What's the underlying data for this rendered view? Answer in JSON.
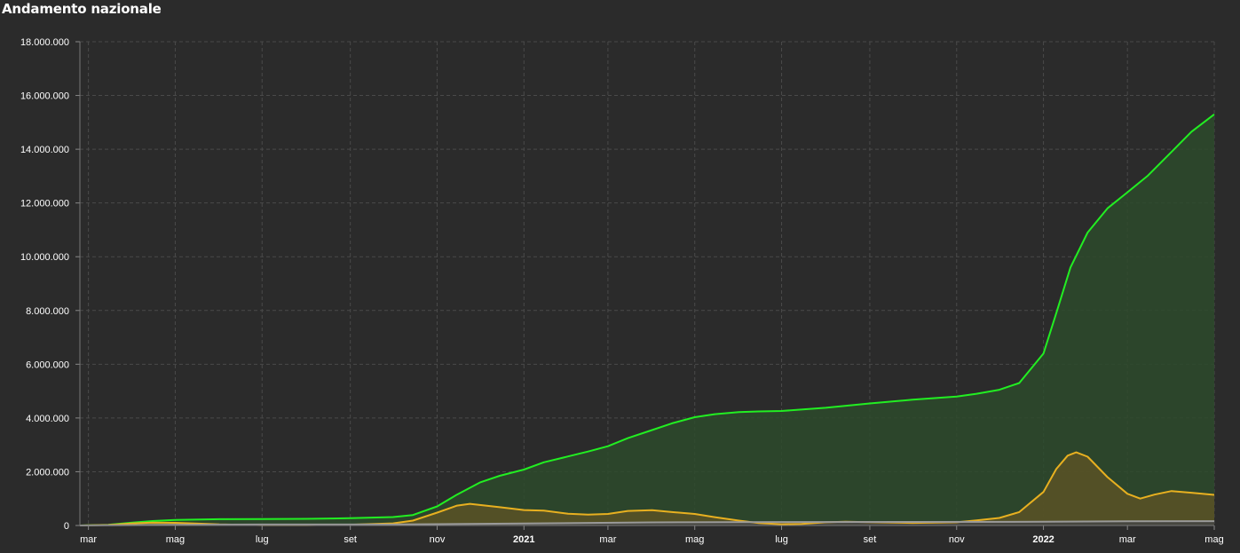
{
  "title": "Andamento nazionale",
  "chart_data": {
    "type": "area",
    "title": "Andamento nazionale",
    "xlabel": "",
    "ylabel": "",
    "ylim": [
      0,
      18000000
    ],
    "xlim": [
      "2020-02-24",
      "2022-05-01"
    ],
    "grid": true,
    "legend": "none",
    "y_ticks": [
      {
        "value": 0,
        "label": "0"
      },
      {
        "value": 2000000,
        "label": "2.000.000"
      },
      {
        "value": 4000000,
        "label": "4.000.000"
      },
      {
        "value": 6000000,
        "label": "6.000.000"
      },
      {
        "value": 8000000,
        "label": "8.000.000"
      },
      {
        "value": 10000000,
        "label": "10.000.000"
      },
      {
        "value": 12000000,
        "label": "12.000.000"
      },
      {
        "value": 14000000,
        "label": "14.000.000"
      },
      {
        "value": 16000000,
        "label": "16.000.000"
      },
      {
        "value": 18000000,
        "label": "18.000.000"
      }
    ],
    "x_ticks": [
      {
        "date": "2020-03-01",
        "label": "mar",
        "bold": false
      },
      {
        "date": "2020-05-01",
        "label": "mag",
        "bold": false
      },
      {
        "date": "2020-07-01",
        "label": "lug",
        "bold": false
      },
      {
        "date": "2020-09-01",
        "label": "set",
        "bold": false
      },
      {
        "date": "2020-11-01",
        "label": "nov",
        "bold": false
      },
      {
        "date": "2021-01-01",
        "label": "2021",
        "bold": true
      },
      {
        "date": "2021-03-01",
        "label": "mar",
        "bold": false
      },
      {
        "date": "2021-05-01",
        "label": "mag",
        "bold": false
      },
      {
        "date": "2021-07-01",
        "label": "lug",
        "bold": false
      },
      {
        "date": "2021-09-01",
        "label": "set",
        "bold": false
      },
      {
        "date": "2021-11-01",
        "label": "nov",
        "bold": false
      },
      {
        "date": "2022-01-01",
        "label": "2022",
        "bold": true
      },
      {
        "date": "2022-03-01",
        "label": "mar",
        "bold": false
      },
      {
        "date": "2022-05-01",
        "label": "mag",
        "bold": false
      }
    ],
    "series": [
      {
        "color": "#22ee22",
        "fill": "#2d4a2b",
        "points": [
          [
            "2020-02-24",
            0
          ],
          [
            "2020-03-15",
            25000
          ],
          [
            "2020-04-01",
            110000
          ],
          [
            "2020-04-15",
            165000
          ],
          [
            "2020-05-01",
            208000
          ],
          [
            "2020-06-01",
            233000
          ],
          [
            "2020-07-01",
            241000
          ],
          [
            "2020-08-01",
            248000
          ],
          [
            "2020-09-01",
            270000
          ],
          [
            "2020-10-01",
            315000
          ],
          [
            "2020-10-15",
            390000
          ],
          [
            "2020-11-01",
            710000
          ],
          [
            "2020-11-15",
            1150000
          ],
          [
            "2020-12-01",
            1600000
          ],
          [
            "2020-12-15",
            1850000
          ],
          [
            "2021-01-01",
            2080000
          ],
          [
            "2021-01-15",
            2350000
          ],
          [
            "2021-02-01",
            2570000
          ],
          [
            "2021-02-15",
            2750000
          ],
          [
            "2021-03-01",
            2950000
          ],
          [
            "2021-03-15",
            3250000
          ],
          [
            "2021-04-01",
            3550000
          ],
          [
            "2021-04-15",
            3800000
          ],
          [
            "2021-05-01",
            4030000
          ],
          [
            "2021-05-15",
            4140000
          ],
          [
            "2021-06-01",
            4220000
          ],
          [
            "2021-06-15",
            4245000
          ],
          [
            "2021-07-01",
            4260000
          ],
          [
            "2021-08-01",
            4380000
          ],
          [
            "2021-09-01",
            4540000
          ],
          [
            "2021-10-01",
            4680000
          ],
          [
            "2021-11-01",
            4800000
          ],
          [
            "2021-11-15",
            4900000
          ],
          [
            "2021-12-01",
            5050000
          ],
          [
            "2021-12-15",
            5300000
          ],
          [
            "2022-01-01",
            6400000
          ],
          [
            "2022-01-10",
            7900000
          ],
          [
            "2022-01-20",
            9600000
          ],
          [
            "2022-02-01",
            10900000
          ],
          [
            "2022-02-15",
            11800000
          ],
          [
            "2022-03-01",
            12400000
          ],
          [
            "2022-03-15",
            13000000
          ],
          [
            "2022-04-01",
            13900000
          ],
          [
            "2022-04-15",
            14650000
          ],
          [
            "2022-05-01",
            15300000
          ]
        ]
      },
      {
        "color": "#e8b020",
        "fill": "#5a5226",
        "points": [
          [
            "2020-02-24",
            0
          ],
          [
            "2020-03-15",
            20000
          ],
          [
            "2020-04-01",
            80000
          ],
          [
            "2020-04-15",
            105000
          ],
          [
            "2020-05-01",
            100000
          ],
          [
            "2020-05-15",
            75000
          ],
          [
            "2020-06-01",
            40000
          ],
          [
            "2020-07-01",
            14000
          ],
          [
            "2020-08-01",
            13000
          ],
          [
            "2020-09-01",
            30000
          ],
          [
            "2020-10-01",
            80000
          ],
          [
            "2020-10-15",
            180000
          ],
          [
            "2020-11-01",
            480000
          ],
          [
            "2020-11-15",
            740000
          ],
          [
            "2020-11-24",
            805000
          ],
          [
            "2020-12-15",
            680000
          ],
          [
            "2021-01-01",
            575000
          ],
          [
            "2021-01-15",
            550000
          ],
          [
            "2021-02-01",
            440000
          ],
          [
            "2021-02-15",
            405000
          ],
          [
            "2021-03-01",
            430000
          ],
          [
            "2021-03-15",
            540000
          ],
          [
            "2021-04-01",
            570000
          ],
          [
            "2021-04-15",
            500000
          ],
          [
            "2021-05-01",
            430000
          ],
          [
            "2021-05-15",
            310000
          ],
          [
            "2021-06-01",
            180000
          ],
          [
            "2021-06-15",
            90000
          ],
          [
            "2021-07-01",
            45000
          ],
          [
            "2021-07-15",
            60000
          ],
          [
            "2021-08-01",
            120000
          ],
          [
            "2021-08-15",
            140000
          ],
          [
            "2021-09-01",
            125000
          ],
          [
            "2021-10-01",
            95000
          ],
          [
            "2021-11-01",
            120000
          ],
          [
            "2021-11-15",
            190000
          ],
          [
            "2021-12-01",
            280000
          ],
          [
            "2021-12-15",
            500000
          ],
          [
            "2022-01-01",
            1250000
          ],
          [
            "2022-01-10",
            2100000
          ],
          [
            "2022-01-18",
            2600000
          ],
          [
            "2022-01-24",
            2720000
          ],
          [
            "2022-02-01",
            2560000
          ],
          [
            "2022-02-15",
            1800000
          ],
          [
            "2022-03-01",
            1180000
          ],
          [
            "2022-03-10",
            1000000
          ],
          [
            "2022-03-20",
            1150000
          ],
          [
            "2022-04-01",
            1280000
          ],
          [
            "2022-04-15",
            1220000
          ],
          [
            "2022-05-01",
            1140000
          ]
        ]
      },
      {
        "color": "#9a9a9a",
        "fill": "#444444",
        "points": [
          [
            "2020-02-24",
            0
          ],
          [
            "2020-05-01",
            28000
          ],
          [
            "2020-07-01",
            35000
          ],
          [
            "2020-10-01",
            36000
          ],
          [
            "2021-01-01",
            75000
          ],
          [
            "2021-04-01",
            115000
          ],
          [
            "2021-07-01",
            128000
          ],
          [
            "2021-10-01",
            131000
          ],
          [
            "2022-01-01",
            138000
          ],
          [
            "2022-03-01",
            155000
          ],
          [
            "2022-05-01",
            163000
          ]
        ]
      }
    ]
  }
}
